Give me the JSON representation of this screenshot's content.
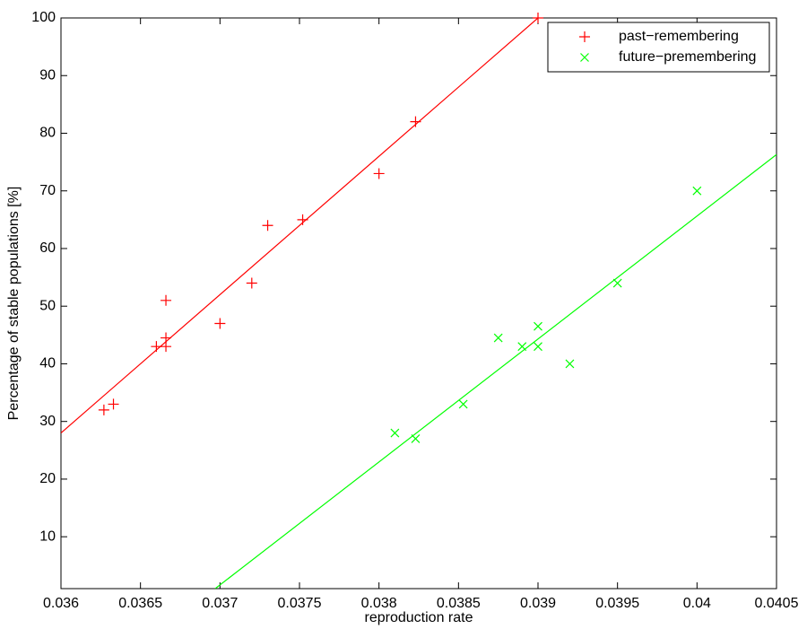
{
  "chart_data": {
    "type": "scatter",
    "xlabel": "reproduction rate",
    "ylabel": "Percentage of stable populations [%]",
    "xlim": [
      0.036,
      0.0405
    ],
    "ylim": [
      1,
      100
    ],
    "xticks": [
      0.036,
      0.0365,
      0.037,
      0.0375,
      0.038,
      0.0385,
      0.039,
      0.0395,
      0.04,
      0.0405
    ],
    "yticks": [
      10,
      20,
      30,
      40,
      50,
      60,
      70,
      80,
      90,
      100
    ],
    "legend": "upper-right",
    "series": [
      {
        "name": "past−remembering",
        "color": "#ff0000",
        "marker": "plus",
        "x": [
          0.03627,
          0.03633,
          0.0366,
          0.03666,
          0.03666,
          0.03666,
          0.037,
          0.0372,
          0.0373,
          0.03752,
          0.038,
          0.03823,
          0.039
        ],
        "values": [
          32,
          33,
          43,
          44.5,
          43,
          51,
          47,
          54,
          64,
          65,
          73,
          82,
          100
        ]
      },
      {
        "name": "future−premembering",
        "color": "#00ff00",
        "marker": "cross",
        "x": [
          0.0381,
          0.03823,
          0.03853,
          0.03875,
          0.0389,
          0.039,
          0.039,
          0.0392,
          0.0395,
          0.04
        ],
        "values": [
          28,
          27,
          33,
          44.5,
          43,
          46.5,
          43,
          40,
          54,
          70
        ]
      }
    ],
    "fits": [
      {
        "color": "#ff0000",
        "x": [
          0.036,
          0.039
        ],
        "values": [
          28,
          100
        ]
      },
      {
        "color": "#00ff00",
        "x": [
          0.03697,
          0.0405
        ],
        "values": [
          1,
          76.3
        ]
      }
    ]
  }
}
